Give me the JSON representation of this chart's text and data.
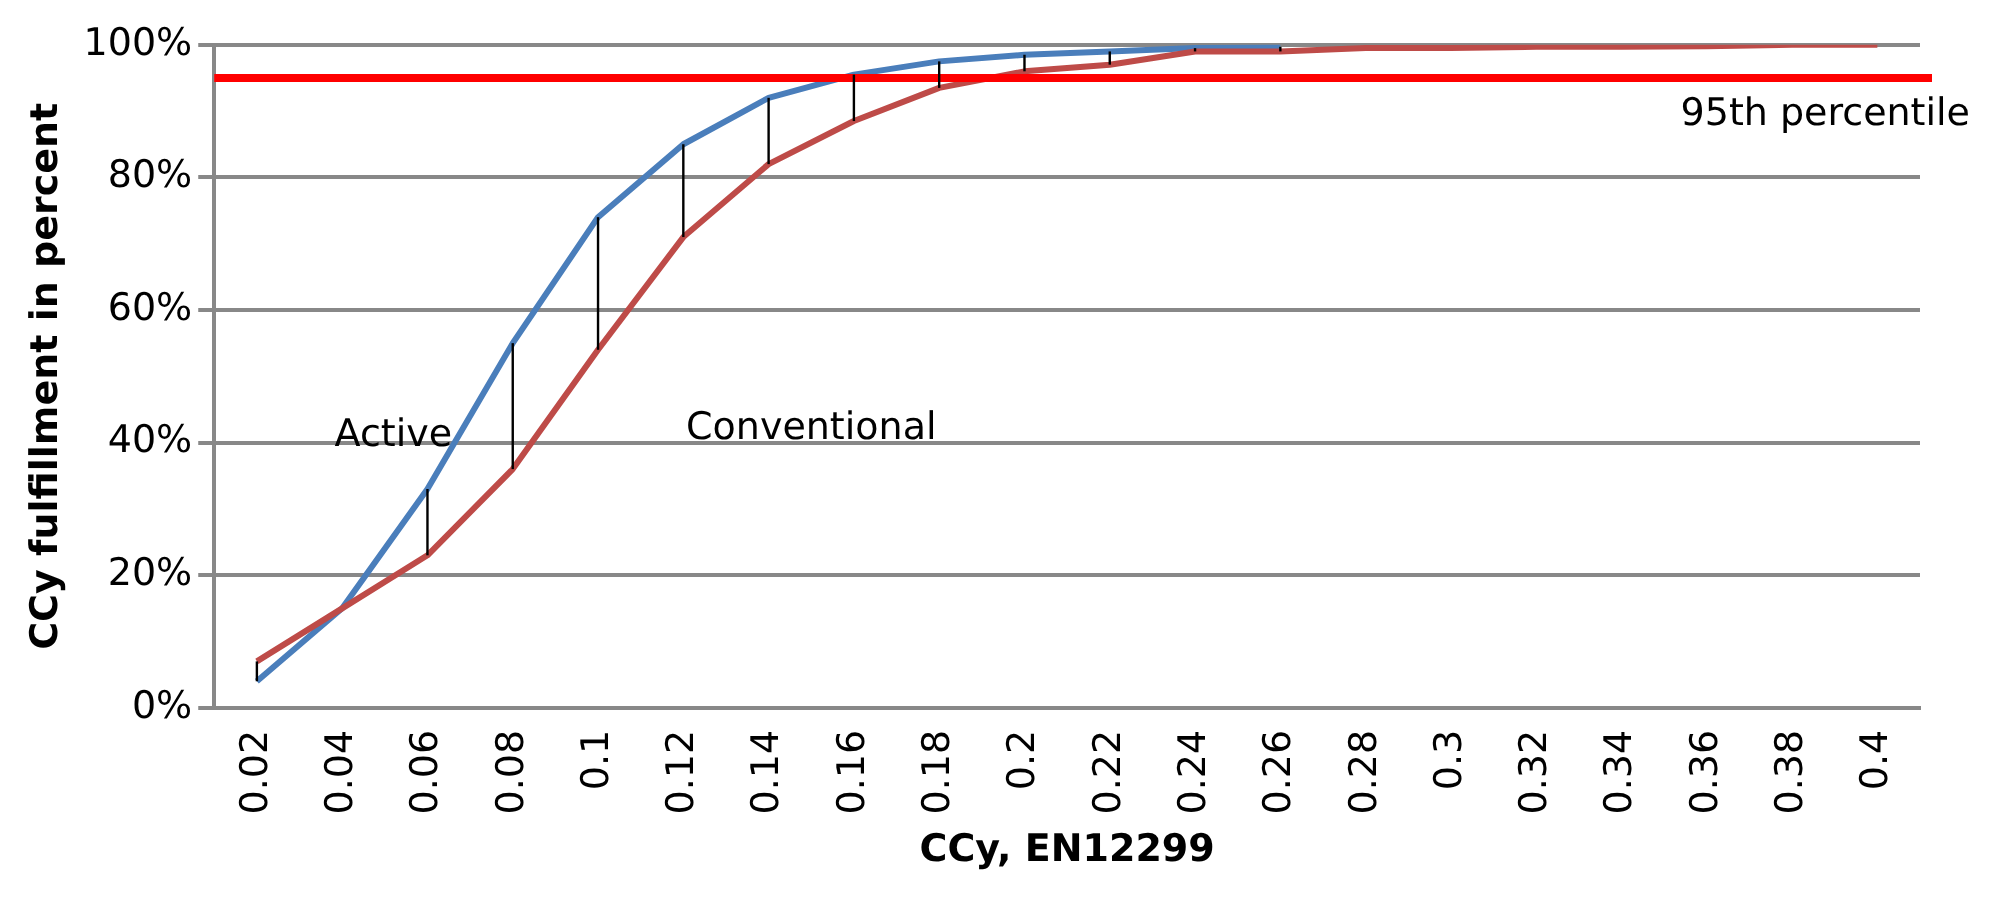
{
  "chart_data": {
    "type": "line",
    "xlabel": "CCy, EN12299",
    "ylabel": "CCy fulfillment in percent",
    "categories": [
      "0.02",
      "0.04",
      "0.06",
      "0.08",
      "0.1",
      "0.12",
      "0.14",
      "0.16",
      "0.18",
      "0.2",
      "0.22",
      "0.24",
      "0.26",
      "0.28",
      "0.3",
      "0.32",
      "0.34",
      "0.36",
      "0.38",
      "0.4"
    ],
    "series": [
      {
        "name": "Active",
        "color": "#4a7ebb",
        "values": [
          4,
          15,
          33,
          55,
          74,
          85,
          92,
          95.5,
          97.5,
          98.5,
          99,
          99.5,
          99.7,
          null,
          null,
          null,
          null,
          null,
          null,
          null
        ]
      },
      {
        "name": "Conventional",
        "color": "#be4b48",
        "values": [
          7,
          15,
          23,
          36,
          54,
          71,
          82,
          88.5,
          93.5,
          96,
          97,
          99,
          99,
          99.5,
          99.5,
          99.7,
          99.7,
          99.8,
          100,
          100
        ],
        "errors": [
          [
            4,
            7
          ],
          [
            15,
            15
          ],
          [
            23,
            33
          ],
          [
            36,
            55
          ],
          [
            54,
            74
          ],
          [
            71,
            85
          ],
          [
            82,
            92
          ],
          [
            88.5,
            95.5
          ],
          [
            93.5,
            97.5
          ],
          [
            96,
            98.5
          ],
          [
            97,
            99
          ],
          [
            99,
            99.5
          ],
          [
            99,
            99.7
          ],
          null,
          null,
          null,
          null,
          null,
          null,
          null
        ]
      }
    ],
    "ylim": [
      0,
      100
    ],
    "yticks": [
      {
        "value": 0,
        "label": "0%"
      },
      {
        "value": 20,
        "label": "20%"
      },
      {
        "value": 40,
        "label": "40%"
      },
      {
        "value": 60,
        "label": "60%"
      },
      {
        "value": 80,
        "label": "80%"
      },
      {
        "value": 100,
        "label": "100%"
      }
    ],
    "grid": "y",
    "legend": false,
    "marker": "none",
    "line_style": "solid",
    "ref_lines": [
      {
        "axis": "y",
        "value": 95,
        "label": "95th percentile",
        "color": "#ff0000"
      }
    ]
  }
}
